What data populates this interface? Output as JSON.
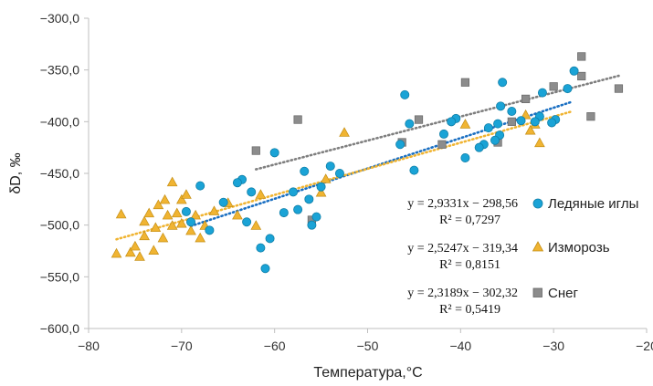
{
  "chart_data": {
    "type": "scatter",
    "title": "",
    "xlabel": "Температура,°C",
    "ylabel": "δD, ‰",
    "xlim": [
      -80,
      -20
    ],
    "ylim": [
      -600,
      -300
    ],
    "x_ticks": [
      -80,
      -70,
      -60,
      -50,
      -40,
      -30,
      -20
    ],
    "y_ticks": [
      -300,
      -350,
      -400,
      -450,
      -500,
      -550,
      -600
    ],
    "x_tick_labels": [
      "−80",
      "−70",
      "−60",
      "−50",
      "−40",
      "−30",
      "−20"
    ],
    "y_tick_labels": [
      "−300,0",
      "−350,0",
      "−400,0",
      "−450,0",
      "−500,0",
      "−550,0",
      "−600,0"
    ],
    "grid": false,
    "legend_position": "right",
    "series": [
      {
        "name": "Ледяные иглы",
        "marker": "circle",
        "color": "#1AA3D6",
        "equation": "y = 2,9331x − 298,56",
        "r2": "R² = 0,7297",
        "trend": {
          "x": [
            -69,
            -28
          ],
          "y": [
            -500.95,
            -380.69
          ]
        },
        "points": [
          [
            -27.8,
            -351
          ],
          [
            -28.5,
            -368
          ],
          [
            -29.8,
            -398
          ],
          [
            -30.2,
            -401
          ],
          [
            -31.2,
            -372
          ],
          [
            -31.5,
            -395
          ],
          [
            -32.0,
            -400
          ],
          [
            -33.5,
            -399
          ],
          [
            -34.5,
            -390
          ],
          [
            -35.5,
            -362
          ],
          [
            -35.7,
            -385
          ],
          [
            -36.0,
            -402
          ],
          [
            -35.8,
            -413
          ],
          [
            -36.3,
            -418
          ],
          [
            -37.0,
            -406
          ],
          [
            -37.5,
            -422
          ],
          [
            -38.0,
            -425
          ],
          [
            -39.5,
            -435
          ],
          [
            -40.5,
            -397
          ],
          [
            -41.0,
            -400
          ],
          [
            -41.8,
            -412
          ],
          [
            -46.0,
            -374
          ],
          [
            -46.5,
            -422
          ],
          [
            -45.5,
            -402
          ],
          [
            -45.0,
            -447
          ],
          [
            -53.0,
            -450
          ],
          [
            -54.0,
            -443
          ],
          [
            -55.0,
            -463
          ],
          [
            -55.5,
            -492
          ],
          [
            -56.0,
            -500
          ],
          [
            -56.3,
            -475
          ],
          [
            -56.8,
            -448
          ],
          [
            -57.5,
            -485
          ],
          [
            -58.0,
            -468
          ],
          [
            -59.0,
            -488
          ],
          [
            -60.0,
            -430
          ],
          [
            -60.5,
            -513
          ],
          [
            -61.0,
            -542
          ],
          [
            -61.5,
            -522
          ],
          [
            -62.5,
            -468
          ],
          [
            -63.0,
            -497
          ],
          [
            -63.5,
            -456
          ],
          [
            -64.0,
            -459
          ],
          [
            -65.5,
            -478
          ],
          [
            -67.0,
            -505
          ],
          [
            -68.0,
            -462
          ],
          [
            -69.0,
            -497
          ],
          [
            -69.5,
            -487
          ]
        ]
      },
      {
        "name": "Изморозь",
        "marker": "triangle",
        "color": "#F0B432",
        "equation": "y = 2,5247x − 319,34",
        "r2": "R² = 0,8151",
        "trend": {
          "x": [
            -77,
            -28
          ],
          "y": [
            -513.74,
            -390.03
          ]
        },
        "points": [
          [
            -77.0,
            -527
          ],
          [
            -76.5,
            -489
          ],
          [
            -75.5,
            -526
          ],
          [
            -75.0,
            -520
          ],
          [
            -74.5,
            -530
          ],
          [
            -74.0,
            -496
          ],
          [
            -74.0,
            -510
          ],
          [
            -73.5,
            -488
          ],
          [
            -73.0,
            -524
          ],
          [
            -72.8,
            -502
          ],
          [
            -72.5,
            -480
          ],
          [
            -72.0,
            -512
          ],
          [
            -71.8,
            -475
          ],
          [
            -71.5,
            -490
          ],
          [
            -71.0,
            -458
          ],
          [
            -71.0,
            -500
          ],
          [
            -70.5,
            -488
          ],
          [
            -70.0,
            -475
          ],
          [
            -70.0,
            -498
          ],
          [
            -69.5,
            -470
          ],
          [
            -69.0,
            -505
          ],
          [
            -68.5,
            -490
          ],
          [
            -68.0,
            -512
          ],
          [
            -67.5,
            -500
          ],
          [
            -66.5,
            -486
          ],
          [
            -65.0,
            -478
          ],
          [
            -64.0,
            -490
          ],
          [
            -62.0,
            -500
          ],
          [
            -61.5,
            -470
          ],
          [
            -55.0,
            -468
          ],
          [
            -54.5,
            -455
          ],
          [
            -52.5,
            -410
          ],
          [
            -39.5,
            -402
          ],
          [
            -33.0,
            -393
          ],
          [
            -32.0,
            -402
          ],
          [
            -31.5,
            -420
          ],
          [
            -32.5,
            -408
          ]
        ]
      },
      {
        "name": "Снег",
        "marker": "square",
        "color": "#8C8C8C",
        "equation": "y = 2,3189x − 302,32",
        "r2": "R² = 0,5419",
        "trend": {
          "x": [
            -62,
            -23
          ],
          "y": [
            -446.09,
            -355.65
          ]
        },
        "points": [
          [
            -27.0,
            -337
          ],
          [
            -27.0,
            -356
          ],
          [
            -26.0,
            -395
          ],
          [
            -23.0,
            -368
          ],
          [
            -30.0,
            -366
          ],
          [
            -33.0,
            -378
          ],
          [
            -34.5,
            -400
          ],
          [
            -36.0,
            -420
          ],
          [
            -39.5,
            -362
          ],
          [
            -42.0,
            -422
          ],
          [
            -44.5,
            -398
          ],
          [
            -46.3,
            -420
          ],
          [
            -57.5,
            -398
          ],
          [
            -62.0,
            -428
          ],
          [
            -56.0,
            -495
          ]
        ]
      }
    ]
  }
}
